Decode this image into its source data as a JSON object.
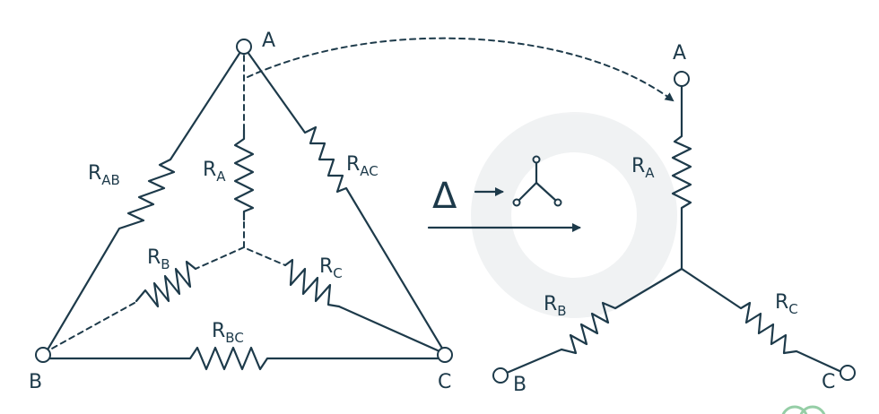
{
  "delta": {
    "nodes": {
      "a": "A",
      "b": "B",
      "c": "C"
    },
    "resistors": {
      "ab": {
        "main": "R",
        "sub": "AB"
      },
      "ac": {
        "main": "R",
        "sub": "AC"
      },
      "bc": {
        "main": "R",
        "sub": "BC"
      },
      "a": {
        "main": "R",
        "sub": "A"
      },
      "b": {
        "main": "R",
        "sub": "B"
      },
      "c": {
        "main": "R",
        "sub": "C"
      }
    }
  },
  "transform": {
    "symbol": "Δ"
  },
  "star": {
    "nodes": {
      "a": "A",
      "b": "B",
      "c": "C"
    },
    "resistors": {
      "a": {
        "main": "R",
        "sub": "A"
      },
      "b": {
        "main": "R",
        "sub": "B"
      },
      "c": {
        "main": "R",
        "sub": "C"
      }
    }
  }
}
